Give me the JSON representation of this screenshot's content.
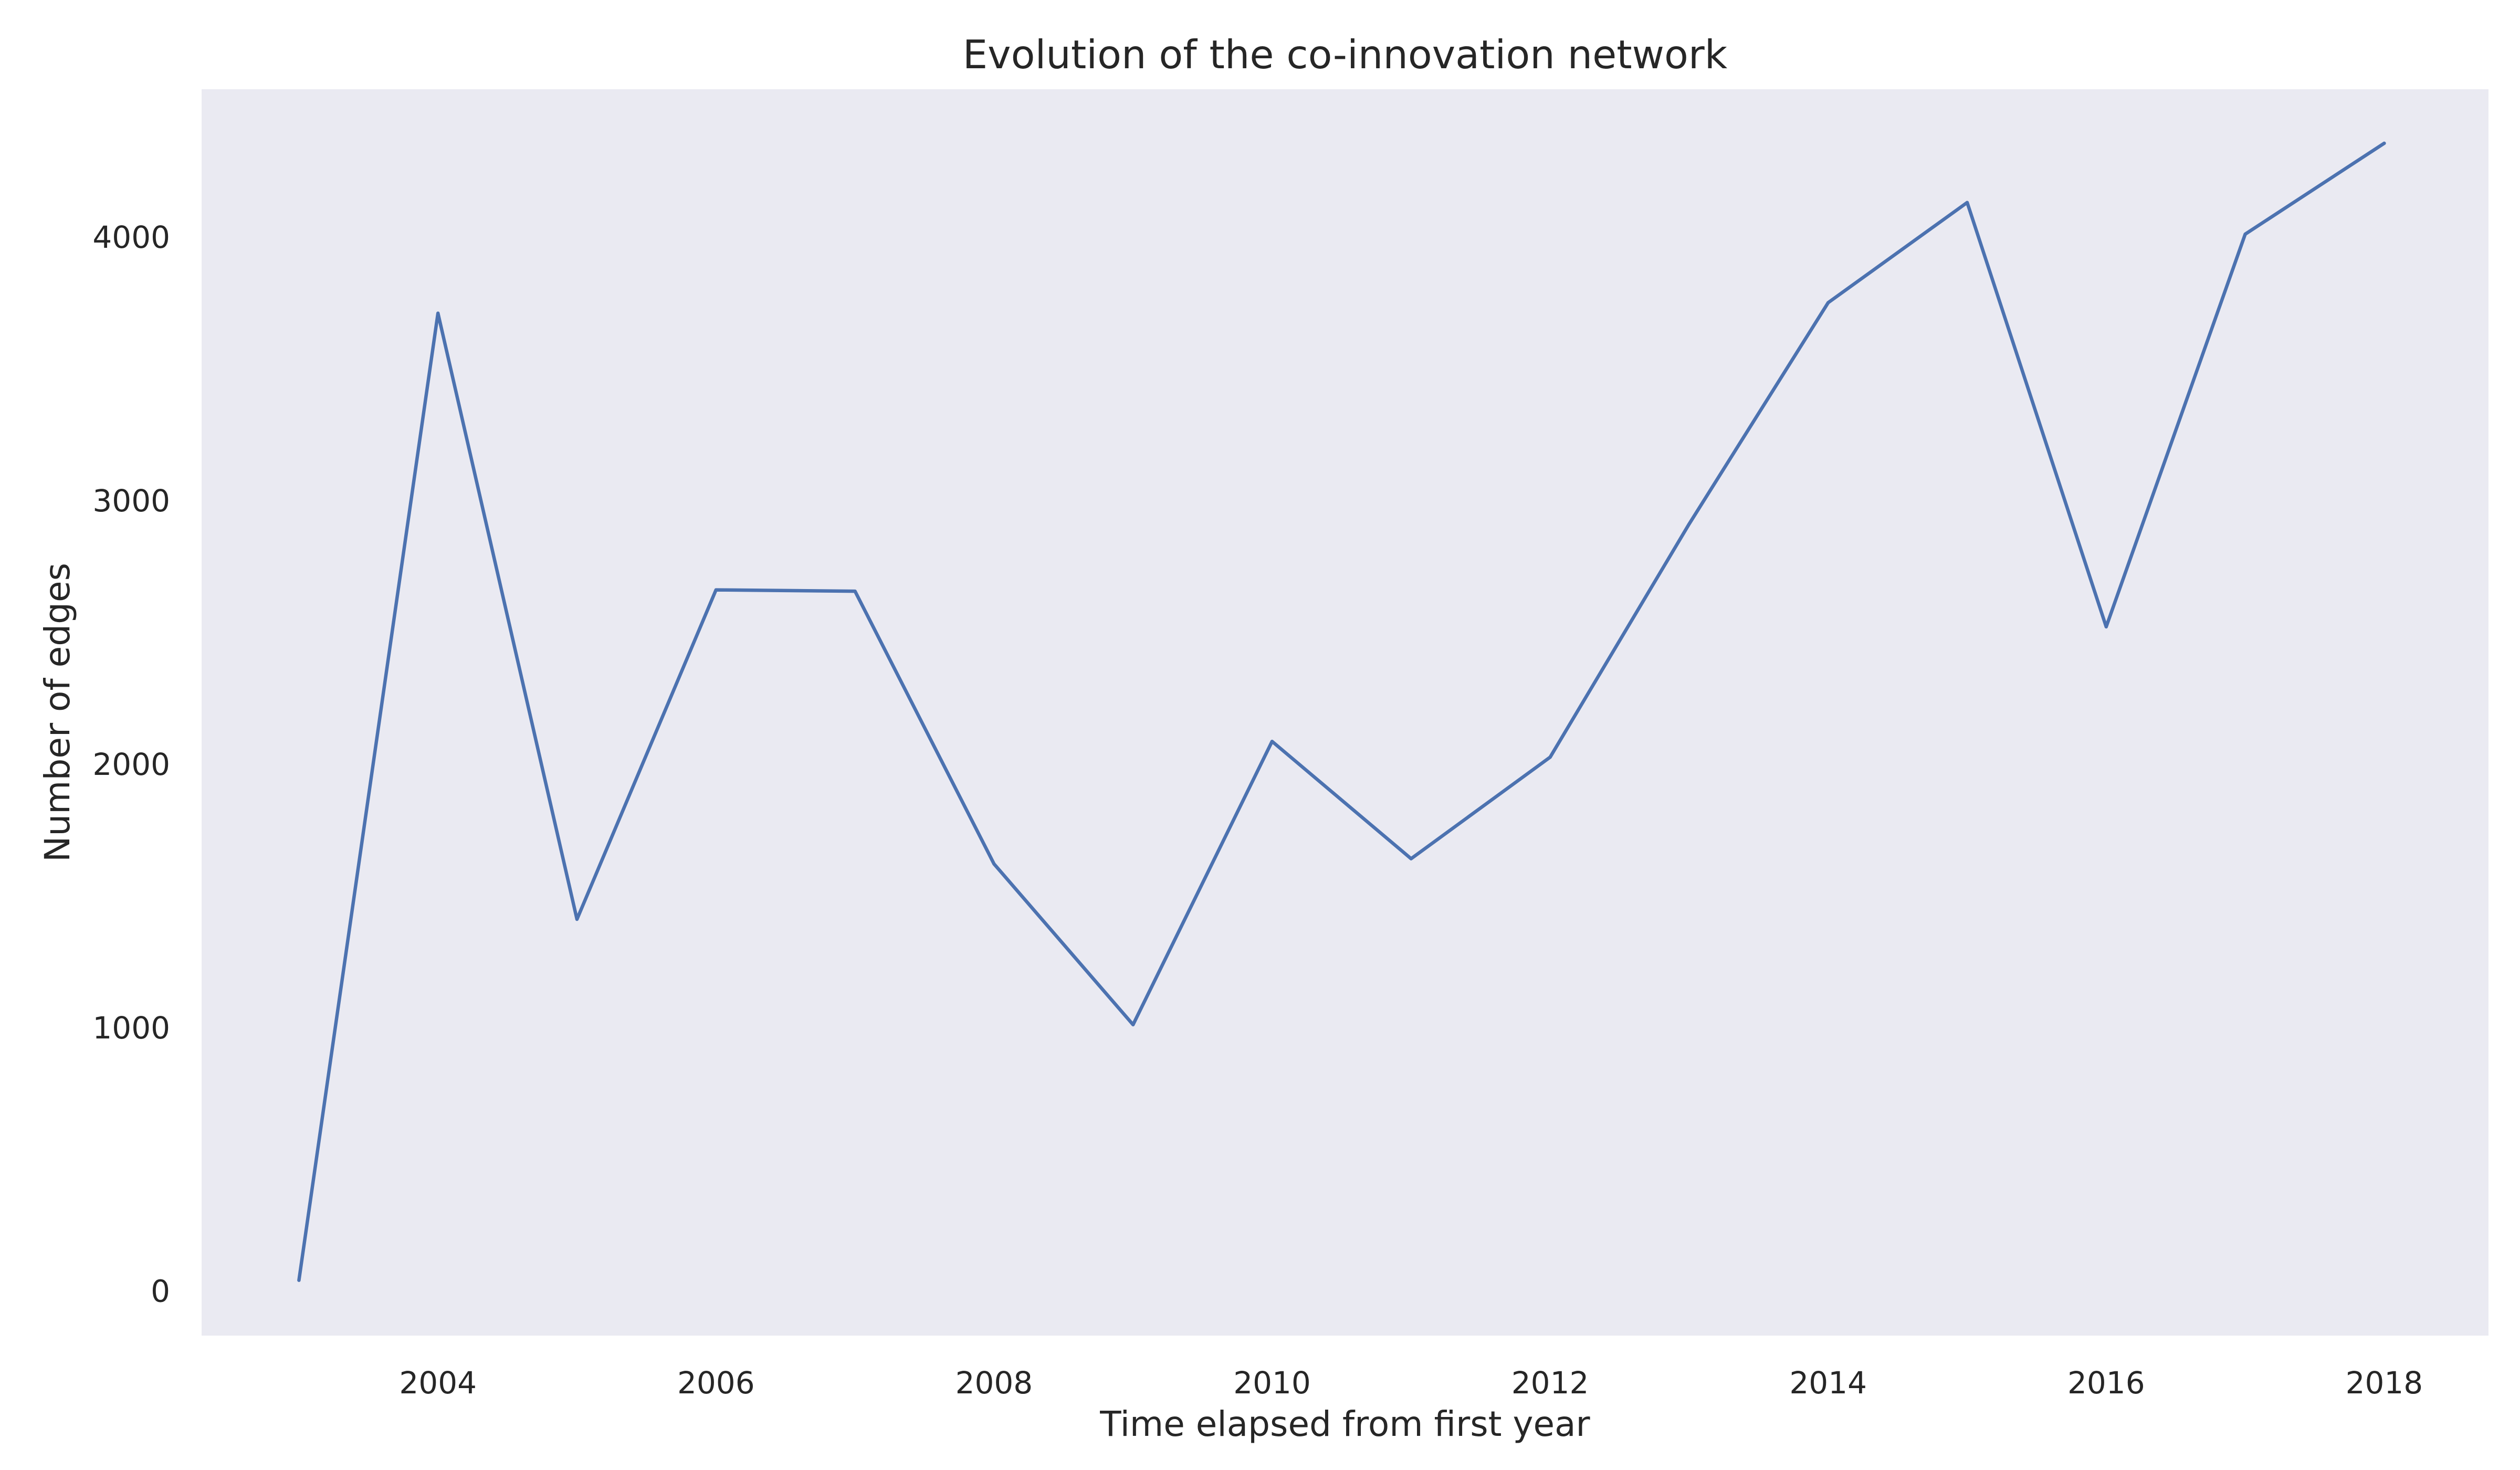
{
  "chart_data": {
    "type": "line",
    "title": "Evolution of the co-innovation network",
    "xlabel": "Time elapsed from first year",
    "ylabel": "Number of edges",
    "xlim": [
      2002.3,
      2018.75
    ],
    "ylim": [
      -170,
      4560
    ],
    "xticks": [
      2004,
      2006,
      2008,
      2010,
      2012,
      2014,
      2016,
      2018
    ],
    "yticks": [
      0,
      1000,
      2000,
      3000,
      4000
    ],
    "grid": false,
    "colors": {
      "background": "#eaeaf2",
      "line": "#4c72b0"
    },
    "series": [
      {
        "x": [
          2003,
          2004,
          2005,
          2006,
          2007,
          2008,
          2009,
          2010,
          2011,
          2012,
          2013,
          2014,
          2015,
          2016,
          2017,
          2018
        ],
        "values": [
          40,
          3710,
          1410,
          2660,
          2655,
          1620,
          1010,
          2085,
          1640,
          2025,
          2910,
          3750,
          4130,
          2520,
          4010,
          4355
        ]
      }
    ]
  }
}
